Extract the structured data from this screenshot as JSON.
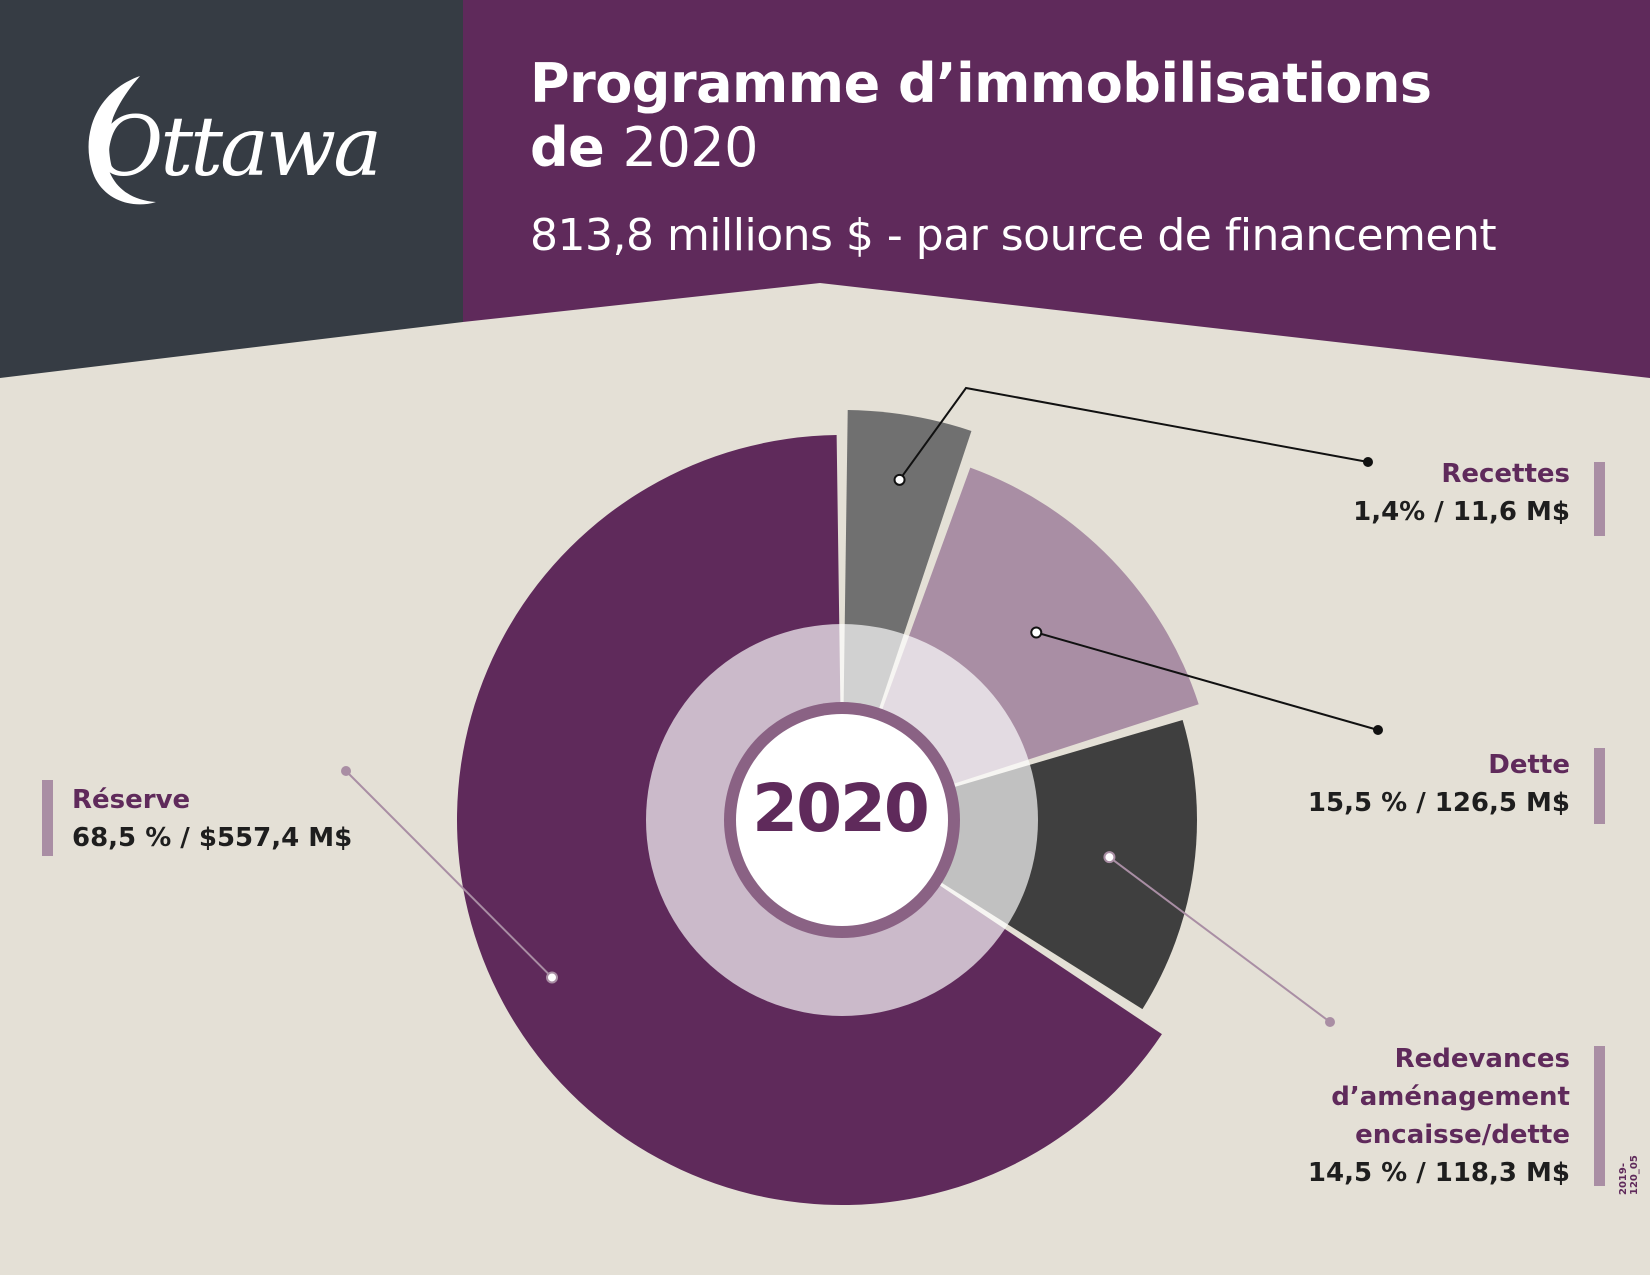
{
  "brand": {
    "logo_text": "Ottawa"
  },
  "header": {
    "title_line1": "Programme d’immobilisations",
    "title_line2_prefix": "de",
    "title_line2_year": "2020",
    "subtitle": "813,8 millions $ - par source de financement"
  },
  "colors": {
    "header_dark": "#363c44",
    "header_purple": "#5f2a5b",
    "background": "#e4e0d6",
    "reserve": "#5f2a5b",
    "recettes": "#707070",
    "dette": "#a98ea4",
    "redevances": "#3f3f3f"
  },
  "chart_data": {
    "type": "pie",
    "center_label": "2020",
    "total": "813,8 millions $",
    "slices": [
      {
        "name": "Recettes",
        "percent": 1.4,
        "amount": 11.6,
        "label_value": "1,4% / 11,6 M$"
      },
      {
        "name": "Dette",
        "percent": 15.5,
        "amount": 126.5,
        "label_value": "15,5 % / 126,5 M$"
      },
      {
        "name": "Redevances d’aménagement encaisse/dette",
        "name_lines": [
          "Redevances",
          "d’aménagement",
          "encaisse/dette"
        ],
        "percent": 14.5,
        "amount": 118.3,
        "label_value": "14,5 % / 118,3 M$"
      },
      {
        "name": "Réserve",
        "percent": 68.5,
        "amount": 557.4,
        "label_value": "68,5 % / $557,4 M$"
      }
    ]
  },
  "footer_code": "2019-120_05"
}
